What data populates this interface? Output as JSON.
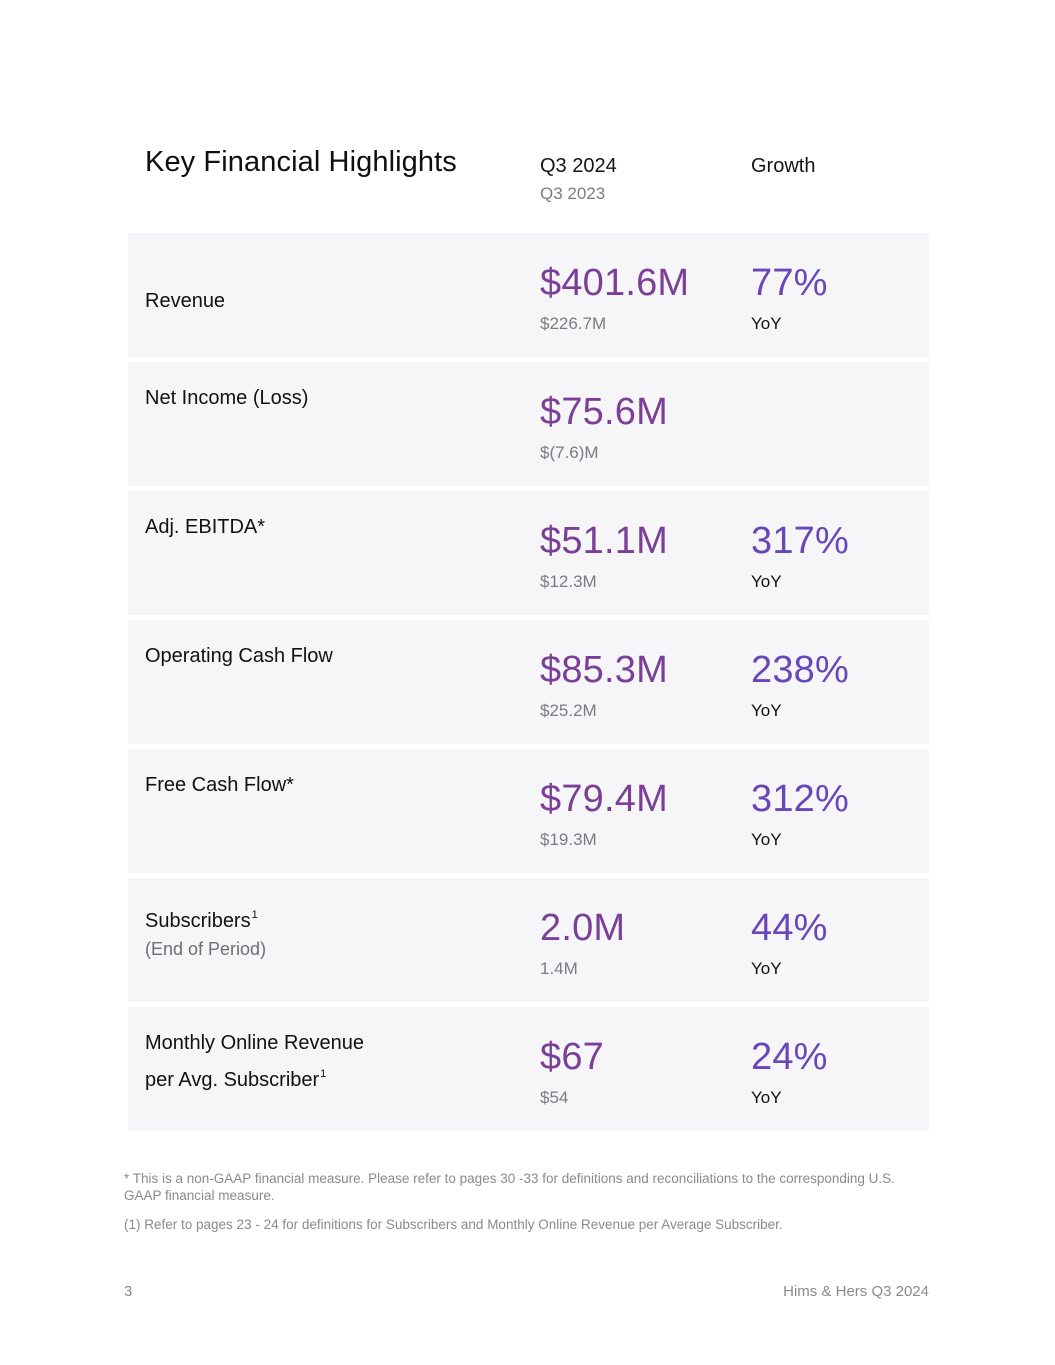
{
  "header": {
    "title": "Key Financial Highlights",
    "current_period": "Q3 2024",
    "prior_period": "Q3 2023",
    "growth_label": "Growth"
  },
  "rows": [
    {
      "label": "Revenue",
      "value": "$401.6M",
      "prior": "$226.7M",
      "growth": "77%",
      "growth_unit": "YoY"
    },
    {
      "label": "Net Income (Loss)",
      "value": "$75.6M",
      "prior": "$(7.6)M"
    },
    {
      "label": "Adj. EBITDA*",
      "value": "$51.1M",
      "prior": "$12.3M",
      "growth": "317%",
      "growth_unit": "YoY"
    },
    {
      "label": "Operating Cash Flow",
      "value": "$85.3M",
      "prior": "$25.2M",
      "growth": "238%",
      "growth_unit": "YoY"
    },
    {
      "label": "Free Cash Flow*",
      "value": "$79.4M",
      "prior": "$19.3M",
      "growth": "312%",
      "growth_unit": "YoY"
    },
    {
      "label": "Subscribers",
      "label_sup": "1",
      "label_sub": "(End of Period)",
      "value": "2.0M",
      "prior": "1.4M",
      "growth": "44%",
      "growth_unit": "YoY"
    },
    {
      "label_line1": "Monthly Online Revenue",
      "label_line2": "per Avg. Subscriber",
      "label_sup": "1",
      "value": "$67",
      "prior": "$54",
      "growth": "24%",
      "growth_unit": "YoY"
    }
  ],
  "footnotes": {
    "non_gaap": "* This is a non-GAAP financial measure. Please refer to pages 30 -33 for definitions and reconciliations to the corresponding U.S. GAAP financial measure.",
    "subscribers": "(1) Refer to pages 23 - 24 for definitions for Subscribers and Monthly Online Revenue per Average Subscriber."
  },
  "footer": {
    "page_number": "3",
    "brand": "Hims & Hers Q3 2024"
  },
  "colors": {
    "value": "#7b3f97",
    "growth": "#6a47b8",
    "row_bg": "#f6f6f8"
  }
}
